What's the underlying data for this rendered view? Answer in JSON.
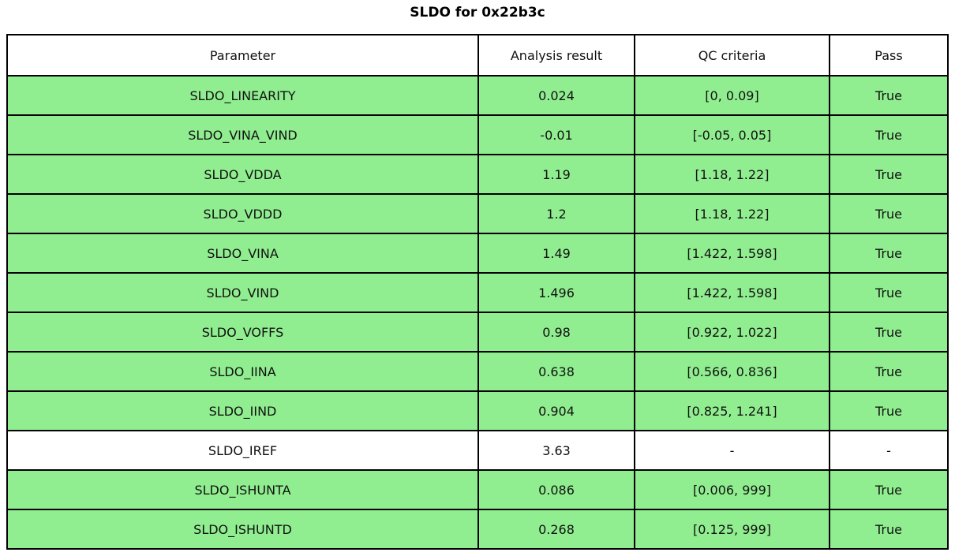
{
  "title": "SLDO for 0x22b3c",
  "colors": {
    "row_pass_background": "#90EE90",
    "row_plain_background": "#FFFFFF",
    "border": "#000000"
  },
  "chart_data": {
    "type": "table",
    "title": "SLDO for 0x22b3c",
    "columns": [
      "Parameter",
      "Analysis result",
      "QC criteria",
      "Pass"
    ],
    "rows": [
      {
        "parameter": "SLDO_LINEARITY",
        "analysis_result": "0.024",
        "qc_criteria": "[0, 0.09]",
        "pass": "True",
        "highlight": true
      },
      {
        "parameter": "SLDO_VINA_VIND",
        "analysis_result": "-0.01",
        "qc_criteria": "[-0.05, 0.05]",
        "pass": "True",
        "highlight": true
      },
      {
        "parameter": "SLDO_VDDA",
        "analysis_result": "1.19",
        "qc_criteria": "[1.18, 1.22]",
        "pass": "True",
        "highlight": true
      },
      {
        "parameter": "SLDO_VDDD",
        "analysis_result": "1.2",
        "qc_criteria": "[1.18, 1.22]",
        "pass": "True",
        "highlight": true
      },
      {
        "parameter": "SLDO_VINA",
        "analysis_result": "1.49",
        "qc_criteria": "[1.422, 1.598]",
        "pass": "True",
        "highlight": true
      },
      {
        "parameter": "SLDO_VIND",
        "analysis_result": "1.496",
        "qc_criteria": "[1.422, 1.598]",
        "pass": "True",
        "highlight": true
      },
      {
        "parameter": "SLDO_VOFFS",
        "analysis_result": "0.98",
        "qc_criteria": "[0.922, 1.022]",
        "pass": "True",
        "highlight": true
      },
      {
        "parameter": "SLDO_IINA",
        "analysis_result": "0.638",
        "qc_criteria": "[0.566, 0.836]",
        "pass": "True",
        "highlight": true
      },
      {
        "parameter": "SLDO_IIND",
        "analysis_result": "0.904",
        "qc_criteria": "[0.825, 1.241]",
        "pass": "True",
        "highlight": true
      },
      {
        "parameter": "SLDO_IREF",
        "analysis_result": "3.63",
        "qc_criteria": "-",
        "pass": "-",
        "highlight": false
      },
      {
        "parameter": "SLDO_ISHUNTA",
        "analysis_result": "0.086",
        "qc_criteria": "[0.006, 999]",
        "pass": "True",
        "highlight": true
      },
      {
        "parameter": "SLDO_ISHUNTD",
        "analysis_result": "0.268",
        "qc_criteria": "[0.125, 999]",
        "pass": "True",
        "highlight": true
      }
    ]
  }
}
